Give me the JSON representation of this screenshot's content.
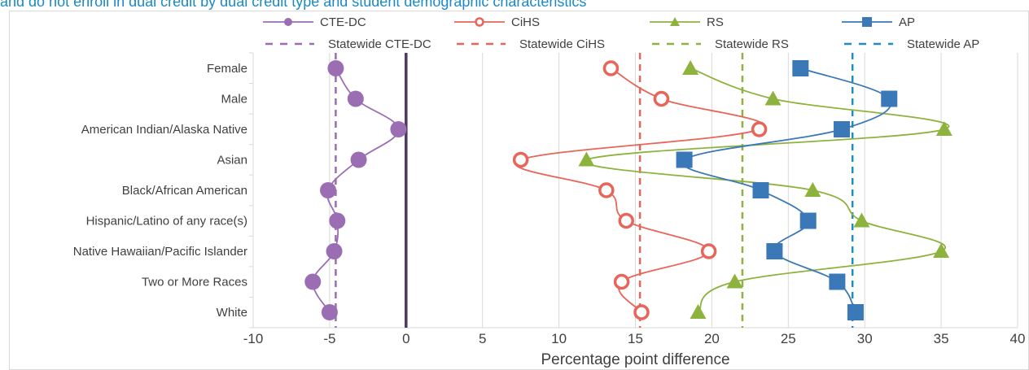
{
  "caption": "and do not enroll in dual credit by dual credit type and student demographic characteristics",
  "chart_data": {
    "type": "line",
    "orientation": "horizontal",
    "categories": [
      "Female",
      "Male",
      "American Indian/Alaska Native",
      "Asian",
      "Black/African American",
      "Hispanic/Latino of any race(s)",
      "Native Hawaiian/Pacific Islander",
      "Two or More Races",
      "White"
    ],
    "xlabel": "Percentage point difference",
    "xlim": [
      -10,
      40
    ],
    "xticks": [
      "-10",
      "-5",
      "0",
      "5",
      "10",
      "15",
      "20",
      "25",
      "30",
      "35",
      "40"
    ],
    "grid": true,
    "legend_position": "top",
    "series": [
      {
        "name": "CTE-DC",
        "color": "#9b6db3",
        "marker": "circle-filled",
        "values": [
          -4.6,
          -3.3,
          -0.5,
          -3.1,
          -5.1,
          -4.5,
          -4.7,
          -6.1,
          -5.0
        ]
      },
      {
        "name": "CiHS",
        "color": "#e8655a",
        "marker": "circle-open",
        "values": [
          13.4,
          16.7,
          23.1,
          7.5,
          13.1,
          14.4,
          19.8,
          14.1,
          15.4
        ]
      },
      {
        "name": "RS",
        "color": "#8db33e",
        "marker": "triangle",
        "values": [
          18.6,
          24.0,
          35.2,
          11.8,
          26.6,
          29.8,
          35.0,
          21.5,
          19.1
        ]
      },
      {
        "name": "AP",
        "color": "#3a78b8",
        "marker": "square",
        "values": [
          25.8,
          31.6,
          28.5,
          18.2,
          23.2,
          26.3,
          24.1,
          28.2,
          29.4
        ]
      }
    ],
    "reference_lines": [
      {
        "name": "Statewide CTE-DC",
        "color": "#9b6db3",
        "value": -4.6
      },
      {
        "name": "Statewide CiHS",
        "color": "#e8655a",
        "value": 15.3
      },
      {
        "name": "Statewide RS",
        "color": "#8db33e",
        "value": 22.0
      },
      {
        "name": "Statewide AP",
        "color": "#1f8dc2",
        "value": 29.2
      }
    ],
    "zero_line_color": "#4d3867"
  }
}
